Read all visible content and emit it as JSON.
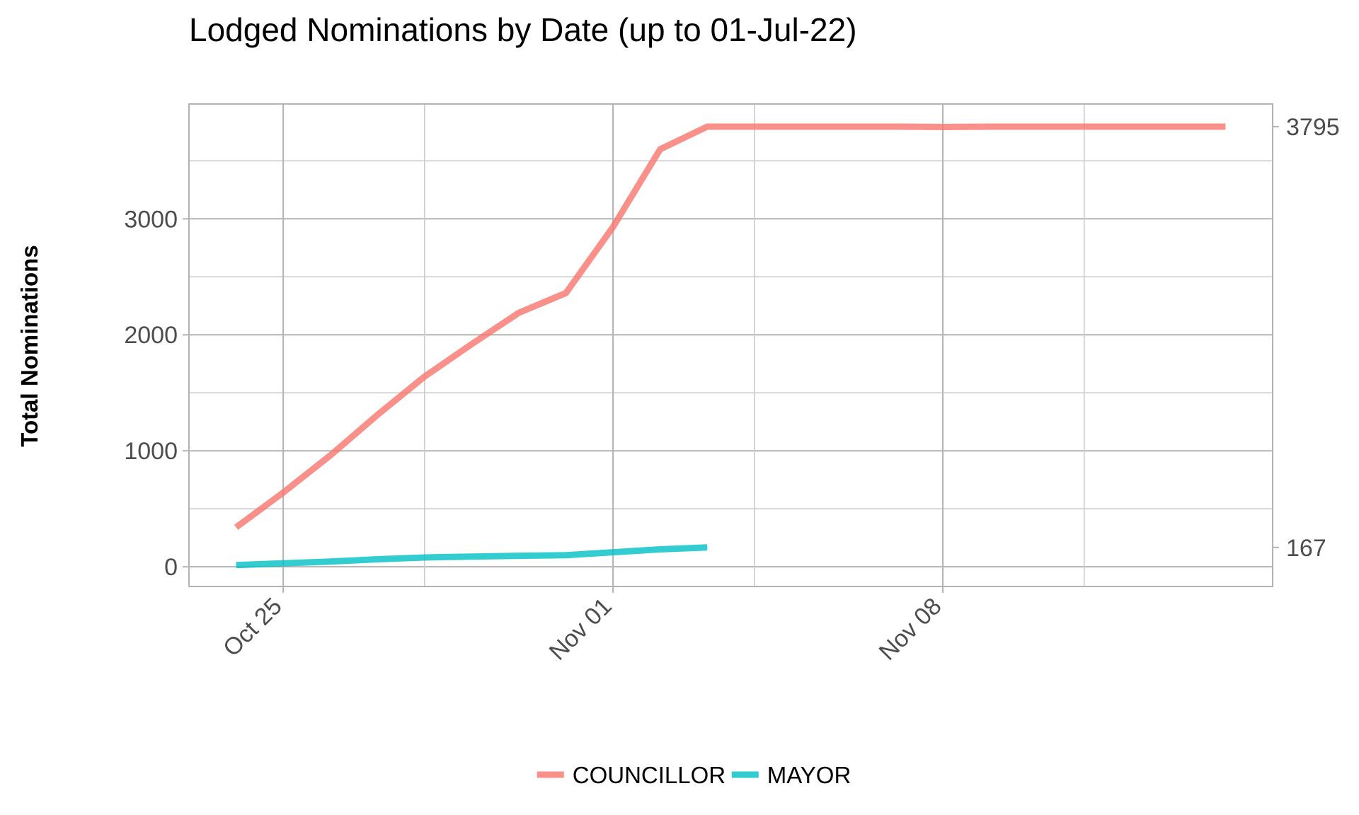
{
  "chart_data": {
    "type": "line",
    "title": "Lodged Nominations by Date (up to 01-Jul-22)",
    "xlabel": "",
    "ylabel": "Total Nominations",
    "x": [
      "2022-10-24",
      "2022-10-25",
      "2022-10-26",
      "2022-10-27",
      "2022-10-28",
      "2022-10-29",
      "2022-10-30",
      "2022-10-31",
      "2022-11-01",
      "2022-11-02",
      "2022-11-03",
      "2022-11-04",
      "2022-11-05",
      "2022-11-06",
      "2022-11-07",
      "2022-11-08",
      "2022-11-09",
      "2022-11-10",
      "2022-11-11",
      "2022-11-12",
      "2022-11-13",
      "2022-11-14",
      "2022-11-15"
    ],
    "x_ticks": [
      "2022-10-25",
      "2022-11-01",
      "2022-11-08"
    ],
    "x_tick_labels": [
      "Oct 25",
      "Nov 01",
      "Nov 08"
    ],
    "x_range": [
      "2022-10-23",
      "2022-11-15"
    ],
    "ylim": [
      -170,
      3990
    ],
    "y_ticks": [
      0,
      1000,
      2000,
      3000
    ],
    "y_tick_labels": [
      "0",
      "1000",
      "2000",
      "3000"
    ],
    "right_axis_labels": [
      {
        "value": 3795,
        "label": "3795"
      },
      {
        "value": 167,
        "label": "167"
      }
    ],
    "grid": true,
    "legend_position": "bottom",
    "series": [
      {
        "name": "COUNCILLOR",
        "color": "#F8766D",
        "values": [
          340,
          640,
          960,
          1310,
          1640,
          1920,
          2190,
          2360,
          2930,
          3600,
          3795,
          3795,
          3795,
          3795,
          3795,
          3792,
          3795,
          3795,
          3795,
          3795,
          3795,
          3795,
          null
        ]
      },
      {
        "name": "MAYOR",
        "color": "#00BFC4",
        "values": [
          15,
          30,
          45,
          65,
          80,
          88,
          95,
          100,
          125,
          150,
          167,
          null,
          null,
          null,
          null,
          null,
          null,
          null,
          null,
          null,
          null,
          null,
          null
        ]
      }
    ]
  }
}
